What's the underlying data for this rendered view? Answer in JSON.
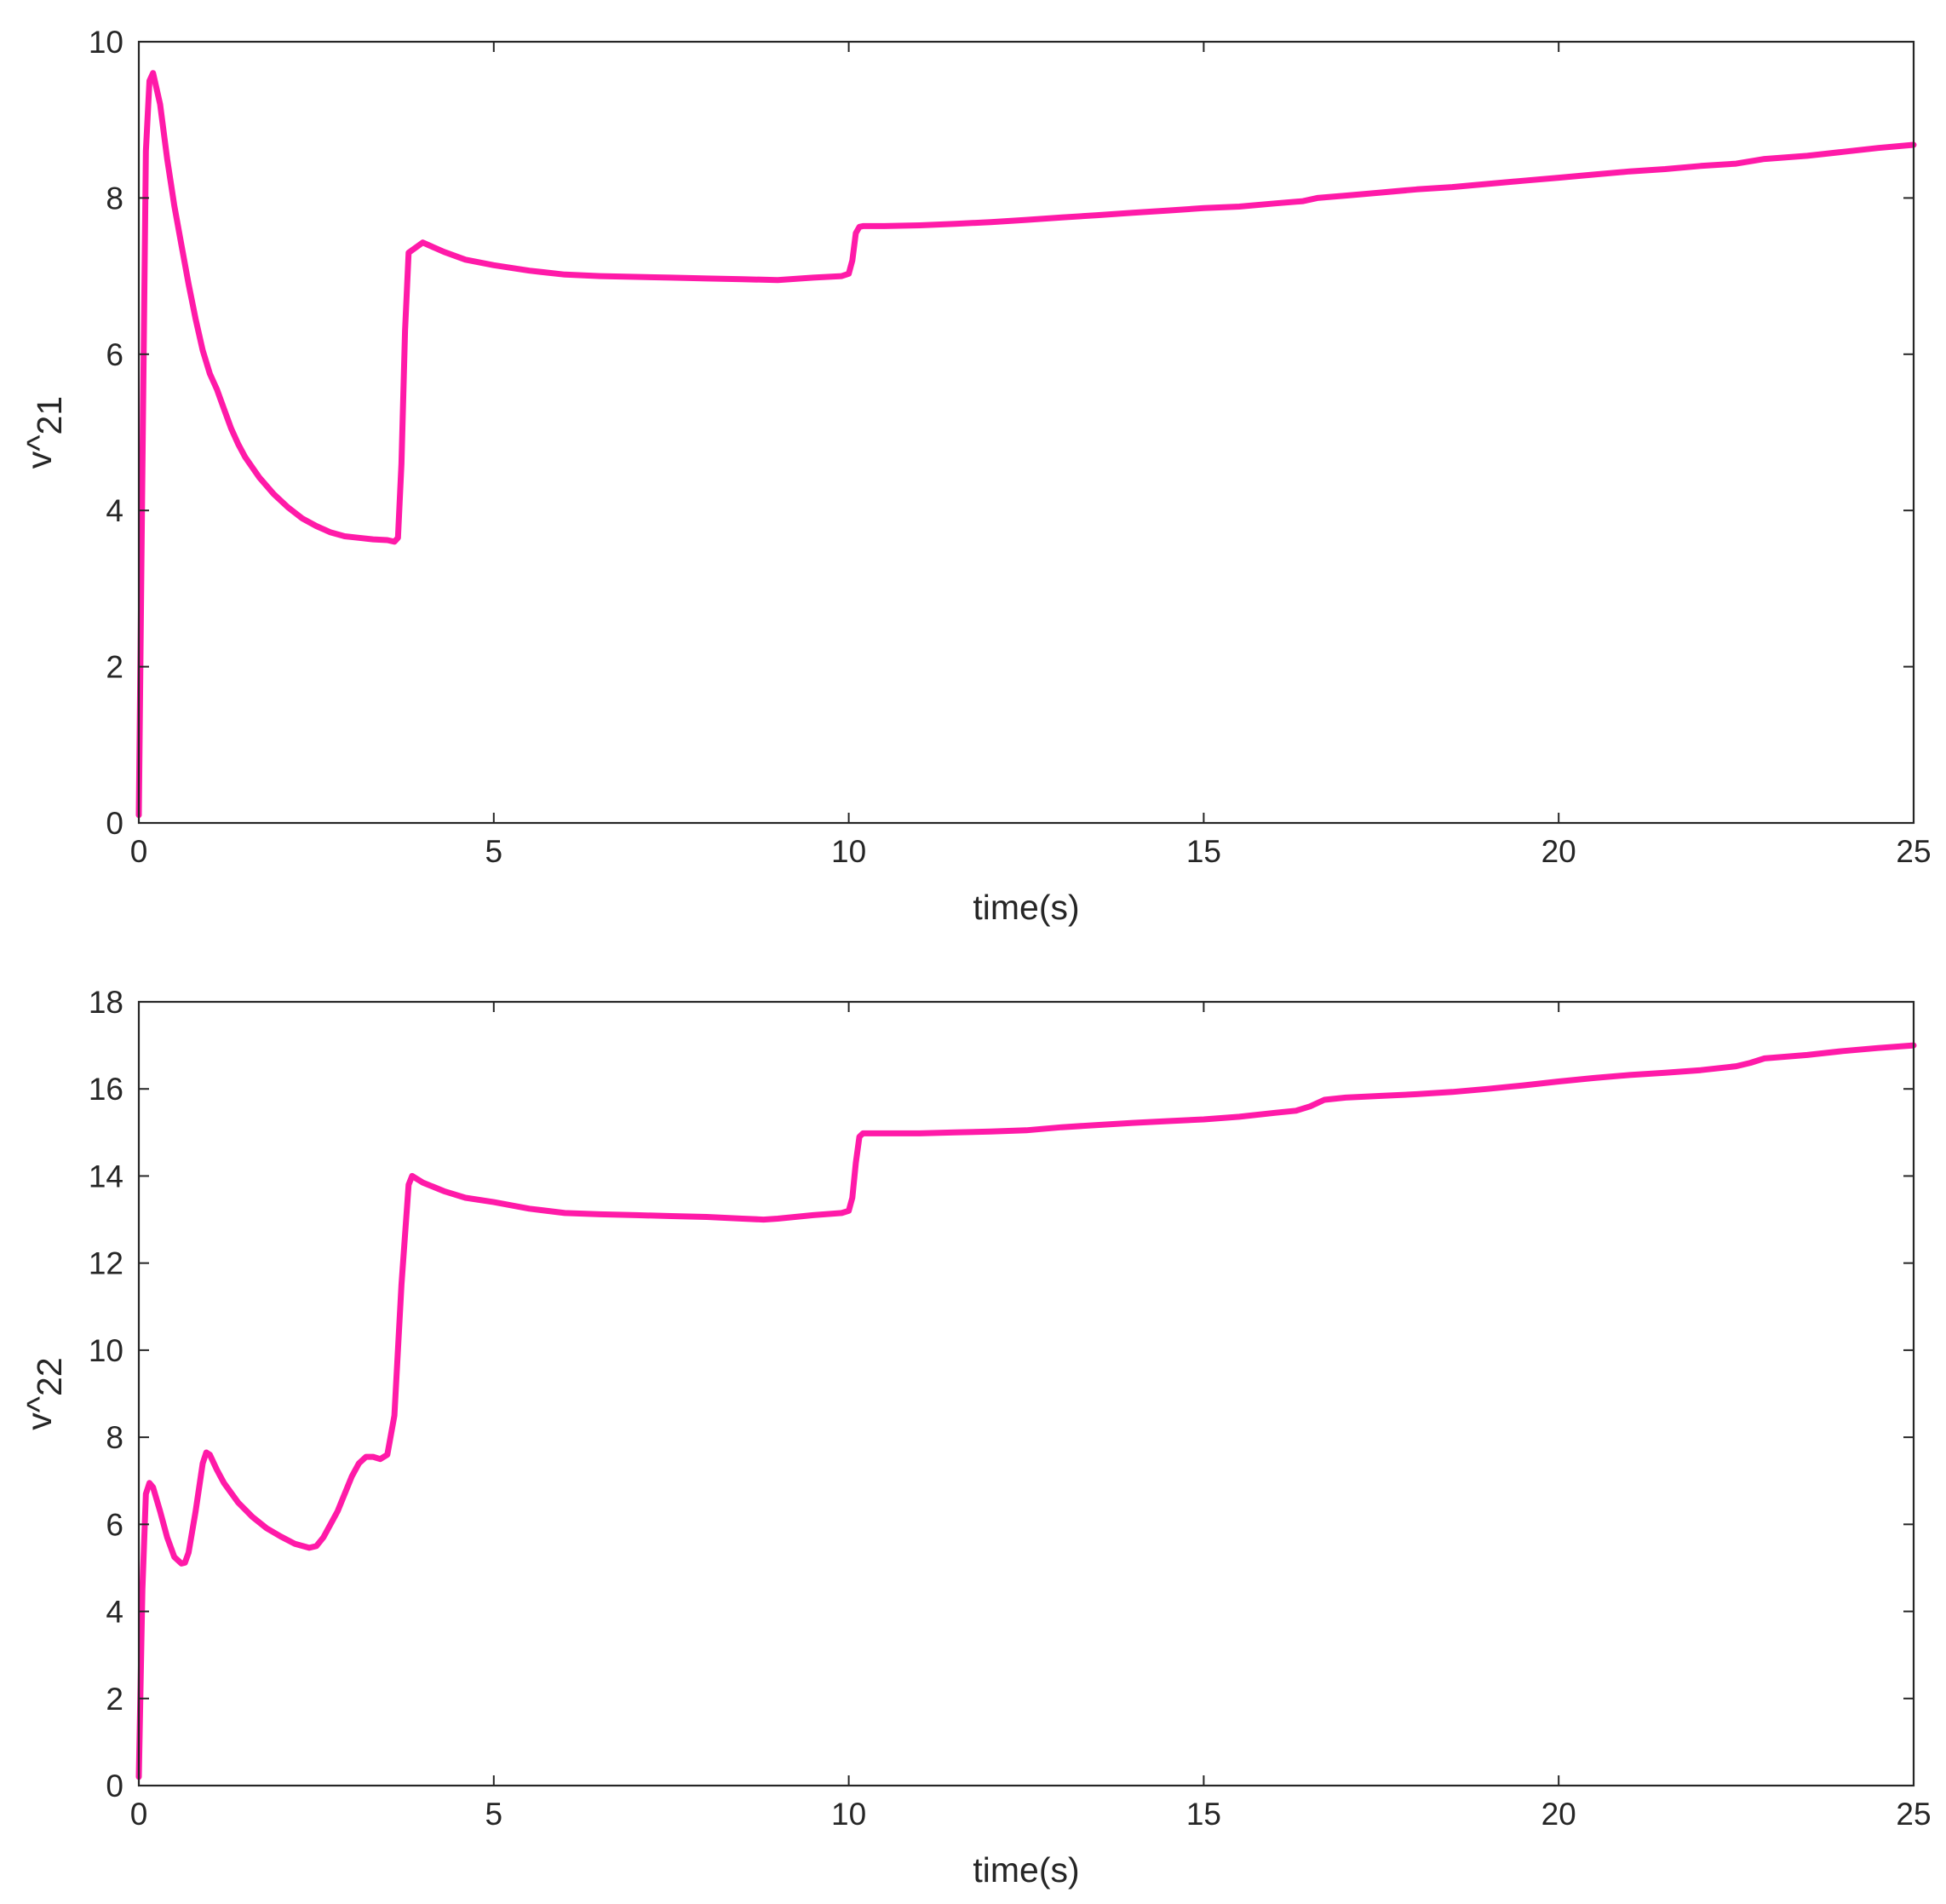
{
  "chart_data": [
    {
      "type": "line",
      "xlabel": "time(s)",
      "ylabel": "v^",
      "ylabel_sub": "21",
      "xlim": [
        0,
        25
      ],
      "ylim": [
        0,
        10
      ],
      "xticks": [
        0,
        5,
        10,
        15,
        20,
        25
      ],
      "yticks": [
        0,
        2,
        4,
        6,
        8,
        10
      ],
      "grid": false,
      "series": [
        {
          "color": "#ff1aa8",
          "x": [
            0,
            0.05,
            0.1,
            0.15,
            0.2,
            0.3,
            0.4,
            0.5,
            0.6,
            0.7,
            0.8,
            0.9,
            1.0,
            1.1,
            1.2,
            1.3,
            1.4,
            1.5,
            1.7,
            1.9,
            2.1,
            2.3,
            2.5,
            2.7,
            2.9,
            3.1,
            3.3,
            3.5,
            3.6,
            3.65,
            3.7,
            3.75,
            3.8,
            4.0,
            4.3,
            4.6,
            5.0,
            5.5,
            6.0,
            6.5,
            7.0,
            7.5,
            8.0,
            8.5,
            9.0,
            9.5,
            9.9,
            10.0,
            10.05,
            10.1,
            10.15,
            10.2,
            10.5,
            11.0,
            11.5,
            12.0,
            12.5,
            13.0,
            13.5,
            14.0,
            14.5,
            15.0,
            15.5,
            16.0,
            16.4,
            16.6,
            17.0,
            17.5,
            18.0,
            18.5,
            19.0,
            19.5,
            20.0,
            20.5,
            21.0,
            21.5,
            22.0,
            22.5,
            22.7,
            22.9,
            23.5,
            24.0,
            24.5,
            25.0
          ],
          "y": [
            0.1,
            4.5,
            8.6,
            9.5,
            9.6,
            9.2,
            8.5,
            7.9,
            7.4,
            6.9,
            6.45,
            6.05,
            5.75,
            5.55,
            5.3,
            5.05,
            4.85,
            4.68,
            4.42,
            4.21,
            4.04,
            3.9,
            3.8,
            3.72,
            3.67,
            3.65,
            3.63,
            3.62,
            3.6,
            3.65,
            4.6,
            6.3,
            7.3,
            7.43,
            7.31,
            7.21,
            7.14,
            7.07,
            7.02,
            7.0,
            6.99,
            6.98,
            6.97,
            6.96,
            6.95,
            6.98,
            7.0,
            7.03,
            7.2,
            7.55,
            7.63,
            7.64,
            7.64,
            7.65,
            7.67,
            7.69,
            7.72,
            7.75,
            7.78,
            7.81,
            7.84,
            7.87,
            7.89,
            7.93,
            7.96,
            8.0,
            8.03,
            8.07,
            8.11,
            8.14,
            8.18,
            8.22,
            8.26,
            8.3,
            8.34,
            8.37,
            8.41,
            8.44,
            8.47,
            8.5,
            8.54,
            8.59,
            8.64,
            8.68
          ]
        }
      ]
    },
    {
      "type": "line",
      "xlabel": "time(s)",
      "ylabel": "v^",
      "ylabel_sub": "22",
      "xlim": [
        0,
        25
      ],
      "ylim": [
        0,
        18
      ],
      "xticks": [
        0,
        5,
        10,
        15,
        20,
        25
      ],
      "yticks": [
        0,
        2,
        4,
        6,
        8,
        10,
        12,
        14,
        16,
        18
      ],
      "grid": false,
      "series": [
        {
          "color": "#ff1aa8",
          "x": [
            0,
            0.05,
            0.1,
            0.15,
            0.2,
            0.3,
            0.4,
            0.5,
            0.6,
            0.65,
            0.7,
            0.8,
            0.9,
            0.95,
            1.0,
            1.1,
            1.2,
            1.4,
            1.6,
            1.8,
            2.0,
            2.2,
            2.4,
            2.5,
            2.6,
            2.8,
            3.0,
            3.1,
            3.2,
            3.3,
            3.4,
            3.5,
            3.6,
            3.7,
            3.8,
            3.85,
            3.9,
            4.0,
            4.3,
            4.6,
            5.0,
            5.5,
            6.0,
            6.5,
            7.0,
            7.5,
            8.0,
            8.5,
            8.8,
            9.0,
            9.5,
            9.9,
            10.0,
            10.05,
            10.1,
            10.15,
            10.2,
            10.5,
            11.0,
            11.5,
            12.0,
            12.5,
            13.0,
            13.5,
            14.0,
            14.5,
            15.0,
            15.5,
            16.0,
            16.3,
            16.5,
            16.7,
            17.0,
            17.5,
            18.0,
            18.5,
            19.0,
            19.5,
            20.0,
            20.5,
            21.0,
            21.5,
            22.0,
            22.5,
            22.7,
            22.9,
            23.5,
            24.0,
            24.5,
            25.0
          ],
          "y": [
            0.2,
            4.5,
            6.7,
            6.95,
            6.85,
            6.3,
            5.7,
            5.25,
            5.1,
            5.12,
            5.35,
            6.3,
            7.4,
            7.65,
            7.6,
            7.25,
            6.95,
            6.5,
            6.17,
            5.91,
            5.72,
            5.55,
            5.46,
            5.5,
            5.7,
            6.3,
            7.1,
            7.4,
            7.55,
            7.55,
            7.5,
            7.6,
            8.5,
            11.5,
            13.8,
            14.0,
            13.95,
            13.85,
            13.65,
            13.5,
            13.4,
            13.25,
            13.15,
            13.12,
            13.1,
            13.08,
            13.06,
            13.02,
            13.0,
            13.02,
            13.1,
            13.15,
            13.2,
            13.5,
            14.3,
            14.9,
            14.98,
            14.98,
            14.98,
            15.0,
            15.02,
            15.05,
            15.12,
            15.17,
            15.22,
            15.26,
            15.3,
            15.36,
            15.45,
            15.5,
            15.6,
            15.75,
            15.8,
            15.84,
            15.88,
            15.93,
            16.0,
            16.08,
            16.17,
            16.25,
            16.32,
            16.37,
            16.43,
            16.52,
            16.6,
            16.7,
            16.78,
            16.87,
            16.94,
            17.0
          ]
        }
      ]
    }
  ]
}
